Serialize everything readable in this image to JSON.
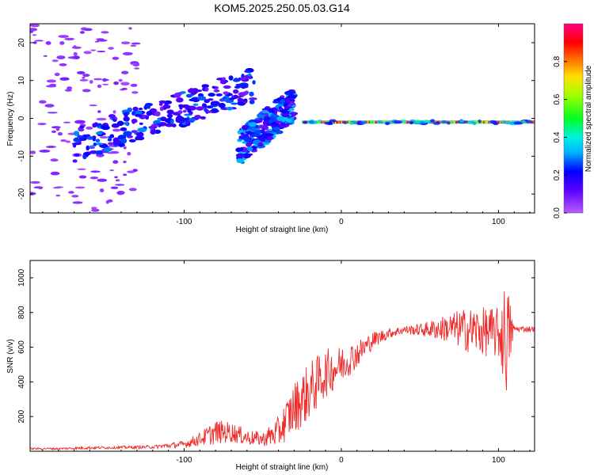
{
  "title": "KOM5.2025.250.05.03.G14",
  "colors": {
    "snr_line": "#ee2a2a",
    "axis": "#000000",
    "background": "#ffffff"
  },
  "chart_data": [
    {
      "type": "heatmap",
      "name": "spectrogram",
      "xlabel": "Height of straight line (km)",
      "ylabel": "Frequency (Hz)",
      "xlim": [
        -198,
        123
      ],
      "ylim": [
        -25,
        25
      ],
      "xticks": [
        -100,
        0,
        100
      ],
      "yticks": [
        -20,
        -10,
        0,
        10,
        20
      ],
      "colorbar": {
        "label": "Normalized spectral amplitude",
        "range": [
          0,
          1
        ],
        "ticks": [
          0.0,
          0.2,
          0.4,
          0.6,
          0.8
        ],
        "colormap": "rainbow (violet-blue-cyan-green-yellow-red-magenta)"
      },
      "features": [
        {
          "segment": "strong carrier",
          "x": [
            -25,
            123
          ],
          "y": -1.0,
          "amplitude": 0.9
        },
        {
          "segment": "rising trend",
          "x": [
            -170,
            -55
          ],
          "y_start": -7,
          "y_end": 9,
          "amplitude": 0.25
        },
        {
          "segment": "rising trend",
          "x": [
            -65,
            -30
          ],
          "y_start": -8,
          "y_end": 4,
          "amplitude": 0.3
        },
        {
          "segment": "scatter noise",
          "x": [
            -198,
            -130
          ],
          "y": [
            -25,
            25
          ],
          "amplitude": 0.05
        }
      ]
    },
    {
      "type": "line",
      "name": "snr",
      "xlabel": "Height of straight line (km)",
      "ylabel": "SNR (v/v)",
      "xlim": [
        -198,
        123
      ],
      "ylim": [
        0,
        1100
      ],
      "xticks": [
        -100,
        0,
        100
      ],
      "yticks": [
        200,
        400,
        600,
        800,
        1000
      ],
      "series": [
        {
          "name": "SNR",
          "x": [
            -198,
            -180,
            -160,
            -140,
            -120,
            -100,
            -90,
            -80,
            -70,
            -60,
            -50,
            -40,
            -30,
            -20,
            -10,
            0,
            10,
            20,
            30,
            40,
            50,
            60,
            70,
            80,
            90,
            100,
            105,
            110,
            123
          ],
          "values": [
            15,
            15,
            20,
            22,
            25,
            40,
            70,
            110,
            110,
            80,
            70,
            110,
            250,
            350,
            450,
            500,
            560,
            640,
            680,
            700,
            700,
            705,
            710,
            700,
            690,
            680,
            660,
            705,
            705
          ],
          "noise_amplitude": [
            5,
            6,
            8,
            8,
            10,
            20,
            40,
            70,
            60,
            45,
            40,
            90,
            150,
            170,
            140,
            110,
            80,
            50,
            30,
            25,
            35,
            60,
            90,
            130,
            140,
            150,
            350,
            20,
            15
          ]
        }
      ]
    }
  ]
}
